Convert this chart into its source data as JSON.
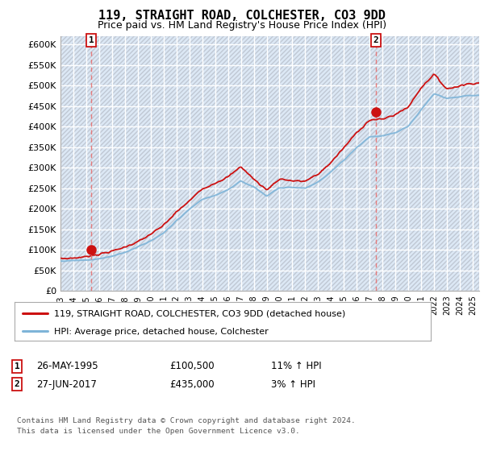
{
  "title_line1": "119, STRAIGHT ROAD, COLCHESTER, CO3 9DD",
  "title_line2": "Price paid vs. HM Land Registry's House Price Index (HPI)",
  "ylim": [
    0,
    620000
  ],
  "yticks": [
    0,
    50000,
    100000,
    150000,
    200000,
    250000,
    300000,
    350000,
    400000,
    450000,
    500000,
    550000,
    600000
  ],
  "ytick_labels": [
    "£0",
    "£50K",
    "£100K",
    "£150K",
    "£200K",
    "£250K",
    "£300K",
    "£350K",
    "£400K",
    "£450K",
    "£500K",
    "£550K",
    "£600K"
  ],
  "background_color": "#ffffff",
  "plot_bg_color": "#dce8f5",
  "grid_color": "#ffffff",
  "hpi_color": "#7eb4d8",
  "price_color": "#cc1111",
  "marker_color": "#cc1111",
  "sale1_x": 1995.4,
  "sale1_y": 100500,
  "sale2_x": 2017.5,
  "sale2_y": 435000,
  "vline_color": "#e87070",
  "legend_label1": "119, STRAIGHT ROAD, COLCHESTER, CO3 9DD (detached house)",
  "legend_label2": "HPI: Average price, detached house, Colchester",
  "note1_date": "26-MAY-1995",
  "note1_price": "£100,500",
  "note1_hpi": "11% ↑ HPI",
  "note2_date": "27-JUN-2017",
  "note2_price": "£435,000",
  "note2_hpi": "3% ↑ HPI",
  "footer": "Contains HM Land Registry data © Crown copyright and database right 2024.\nThis data is licensed under the Open Government Licence v3.0.",
  "xlim_min": 1993.0,
  "xlim_max": 2025.5,
  "xtick_years": [
    1993,
    1994,
    1995,
    1996,
    1997,
    1998,
    1999,
    2000,
    2001,
    2002,
    2003,
    2004,
    2005,
    2006,
    2007,
    2008,
    2009,
    2010,
    2011,
    2012,
    2013,
    2014,
    2015,
    2016,
    2017,
    2018,
    2019,
    2020,
    2021,
    2022,
    2023,
    2024,
    2025
  ]
}
